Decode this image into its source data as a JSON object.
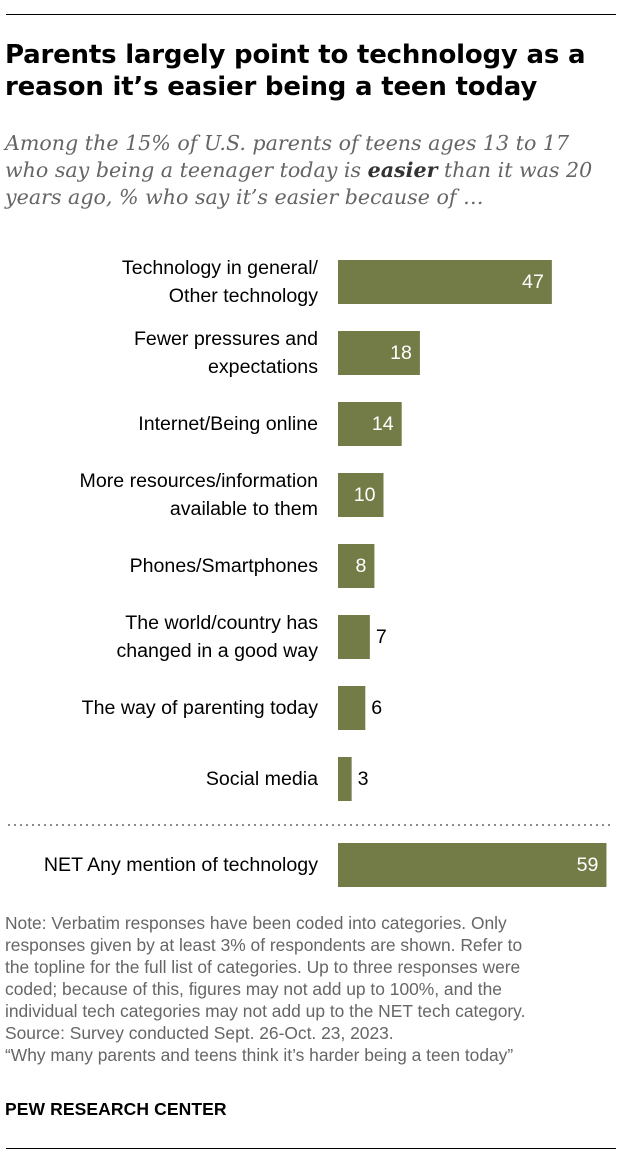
{
  "title": "Parents largely point to technology as a reason it’s easier being a teen today",
  "subtitle": {
    "before": "Among the 15% of U.S. parents of teens ages 13 to 17 who say being a teenager today is ",
    "emphasis": "easier",
    "after": " than it was 20 years ago, % who say it’s easier because of …"
  },
  "colors": {
    "bar": "#737b47",
    "label_inside": "#ffffff",
    "label_outside": "#000000",
    "text": "#000000",
    "divider": "#8c8c8c"
  },
  "chart_data": {
    "type": "bar",
    "orientation": "horizontal",
    "categories": [
      [
        "Technology in general/",
        "Other technology"
      ],
      [
        "Fewer pressures and",
        "expectations"
      ],
      [
        "Internet/Being online"
      ],
      [
        "More resources/information",
        "available to them"
      ],
      [
        "Phones/Smartphones"
      ],
      [
        "The world/country has",
        "changed in a good way"
      ],
      [
        "The way of parenting today"
      ],
      [
        "Social media"
      ]
    ],
    "values": [
      47,
      18,
      14,
      10,
      8,
      7,
      6,
      3
    ],
    "net": {
      "label": [
        "NET Any mention of technology"
      ],
      "value": 59
    },
    "grid": false,
    "legend": "none"
  },
  "notes": [
    "Note: Verbatim responses have been coded into categories. Only",
    "responses given by at least 3% of respondents are shown. Refer to",
    "the topline for the full list of categories. Up to three responses were",
    "coded; because of this, figures may not add up to 100%, and the",
    "individual tech categories may not add up to the NET tech category.",
    "Source: Survey conducted Sept. 26-Oct. 23, 2023.",
    "“Why many parents and teens think it’s harder being a teen today”"
  ],
  "brand": "PEW RESEARCH CENTER"
}
